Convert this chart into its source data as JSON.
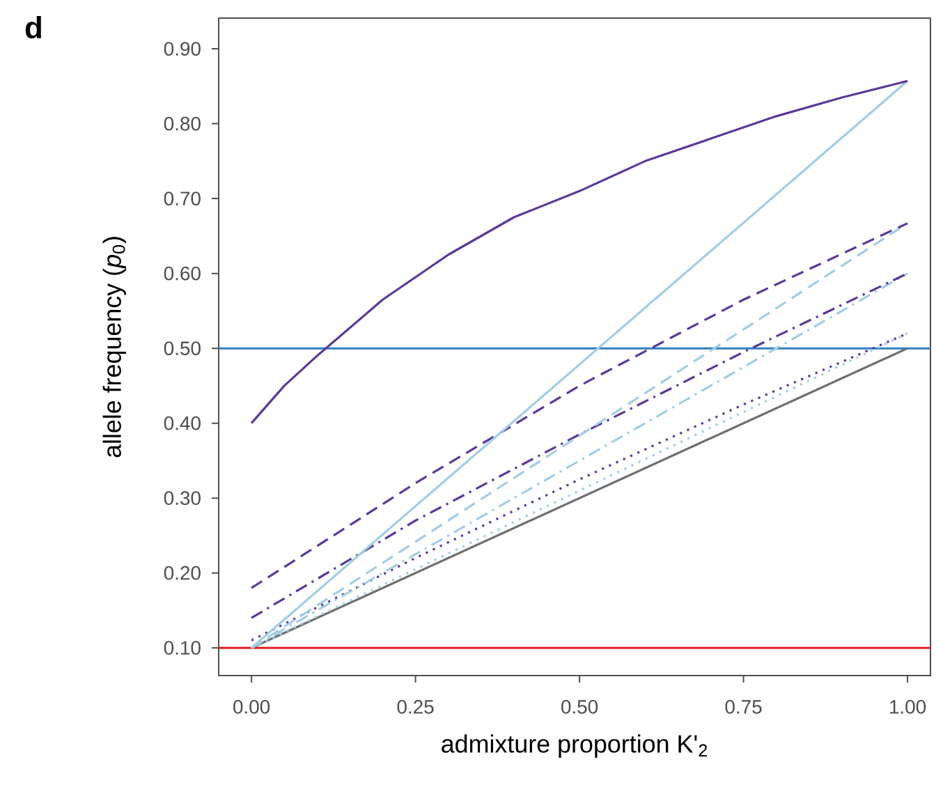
{
  "chart_data": {
    "type": "line",
    "title": "**d**",
    "xlabel": "admixture proportion K'$_{2}$",
    "ylabel": "allele frequency (*p*$_{0}$)",
    "xlim": [
      -0.05,
      1.035
    ],
    "ylim": [
      0.063,
      0.941
    ],
    "xticks": [
      {
        "value": 0,
        "label": "0.00"
      },
      {
        "value": 0.25,
        "label": "0.25"
      },
      {
        "value": 0.5,
        "label": "0.50"
      },
      {
        "value": 0.75,
        "label": "0.75"
      },
      {
        "value": 1,
        "label": "1.00"
      }
    ],
    "yticks": [
      {
        "value": 0.1,
        "label": "0.10"
      },
      {
        "value": 0.2,
        "label": "0.20"
      },
      {
        "value": 0.3,
        "label": "0.30"
      },
      {
        "value": 0.4,
        "label": "0.40"
      },
      {
        "value": 0.5,
        "label": "0.50"
      },
      {
        "value": 0.6,
        "label": "0.60"
      },
      {
        "value": 0.7,
        "label": "0.70"
      },
      {
        "value": 0.8,
        "label": "0.80"
      },
      {
        "value": 0.9,
        "label": "0.90"
      }
    ],
    "grid": false,
    "ref_lines": [
      {
        "axis": "y",
        "value": 0.5,
        "color": "#2f7fbf",
        "line_style": "solid"
      },
      {
        "axis": "y",
        "value": 0.1,
        "color": "#e8202a",
        "line_style": "solid"
      }
    ],
    "series": [
      {
        "color": "#6e6e6e",
        "line_style": "solid",
        "x": [
          0,
          1
        ],
        "values": [
          0.1,
          0.5
        ]
      },
      {
        "color": "#a3cde6",
        "line_style": "dotted",
        "x": [
          0,
          1
        ],
        "values": [
          0.1,
          0.52
        ]
      },
      {
        "color": "#5b3a98",
        "line_style": "dotted",
        "x": [
          0,
          0.25,
          0.5,
          0.75,
          1
        ],
        "values": [
          0.11,
          0.22,
          0.325,
          0.425,
          0.52
        ]
      },
      {
        "color": "#a3cde6",
        "line_style": "dashdot",
        "x": [
          0,
          1
        ],
        "values": [
          0.1,
          0.6
        ]
      },
      {
        "color": "#5b3a98",
        "line_style": "dashdot",
        "x": [
          0,
          0.25,
          0.5,
          0.75,
          1
        ],
        "values": [
          0.14,
          0.27,
          0.385,
          0.495,
          0.6
        ]
      },
      {
        "color": "#a3cde6",
        "line_style": "dashed",
        "x": [
          0,
          1
        ],
        "values": [
          0.1,
          0.667
        ]
      },
      {
        "color": "#5b3a98",
        "line_style": "dashed",
        "x": [
          0,
          0.25,
          0.5,
          0.75,
          1
        ],
        "values": [
          0.18,
          0.32,
          0.45,
          0.565,
          0.667
        ]
      },
      {
        "color": "#a3cde6",
        "line_style": "solid",
        "x": [
          0,
          1
        ],
        "values": [
          0.1,
          0.857
        ]
      },
      {
        "color": "#5b3a98",
        "line_style": "solid",
        "x": [
          0,
          0.05,
          0.1,
          0.2,
          0.3,
          0.4,
          0.5,
          0.6,
          0.7,
          0.8,
          0.9,
          1
        ],
        "values": [
          0.4,
          0.45,
          0.49,
          0.565,
          0.625,
          0.675,
          0.71,
          0.75,
          0.78,
          0.81,
          0.835,
          0.857
        ]
      }
    ]
  }
}
